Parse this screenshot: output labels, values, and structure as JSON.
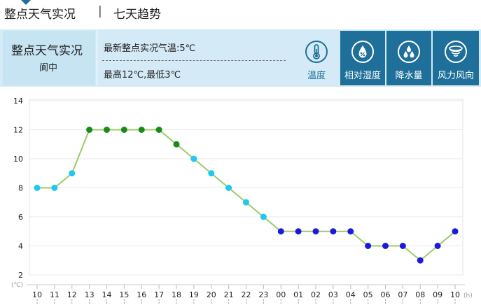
{
  "tabs": {
    "hourly": "整点天气实况",
    "separator": "|",
    "seven_day": "七天趋势"
  },
  "location": {
    "title": "整点天气实况",
    "city": "阆中"
  },
  "summary": {
    "latest": "最新整点实况气温:5℃",
    "max_min": "最高12℃,最低3℃"
  },
  "metrics": [
    {
      "label": "温度",
      "icon": "thermometer-icon",
      "active": true
    },
    {
      "label": "相对湿度",
      "icon": "humidity-drop-icon",
      "active": false
    },
    {
      "label": "降水量",
      "icon": "rain-drops-icon",
      "active": false
    },
    {
      "label": "风力风向",
      "icon": "wind-icon",
      "active": false
    }
  ],
  "colors": {
    "accent": "#1e6f99",
    "band": "#d4ebf7",
    "line": "#99cc66",
    "cyan": "#1ec8f0",
    "green": "#1a8a1a",
    "blue": "#1a1adb"
  },
  "chart_data": {
    "type": "line",
    "y_unit": "(℃)",
    "x_unit": "(h)",
    "ylim": [
      2,
      14
    ],
    "yticks": [
      "2",
      "4",
      "6",
      "8",
      "10",
      "12",
      "14"
    ],
    "categories": [
      "10",
      "11",
      "12",
      "13",
      "14",
      "15",
      "16",
      "17",
      "18",
      "19",
      "20",
      "21",
      "22",
      "23",
      "00",
      "01",
      "02",
      "03",
      "04",
      "05",
      "06",
      "07",
      "08",
      "09",
      "10"
    ],
    "series": [
      {
        "values": [
          8,
          8,
          9,
          12,
          12,
          12,
          12,
          12,
          11,
          10,
          9,
          8,
          7,
          6,
          5,
          5,
          5,
          5,
          5,
          4,
          4,
          4,
          3,
          4,
          5
        ],
        "point_colors": [
          "cyan",
          "cyan",
          "cyan",
          "green",
          "green",
          "green",
          "green",
          "green",
          "green",
          "cyan",
          "cyan",
          "cyan",
          "cyan",
          "cyan",
          "blue",
          "blue",
          "blue",
          "blue",
          "blue",
          "blue",
          "blue",
          "blue",
          "blue",
          "blue",
          "blue"
        ]
      }
    ],
    "grid": true
  }
}
